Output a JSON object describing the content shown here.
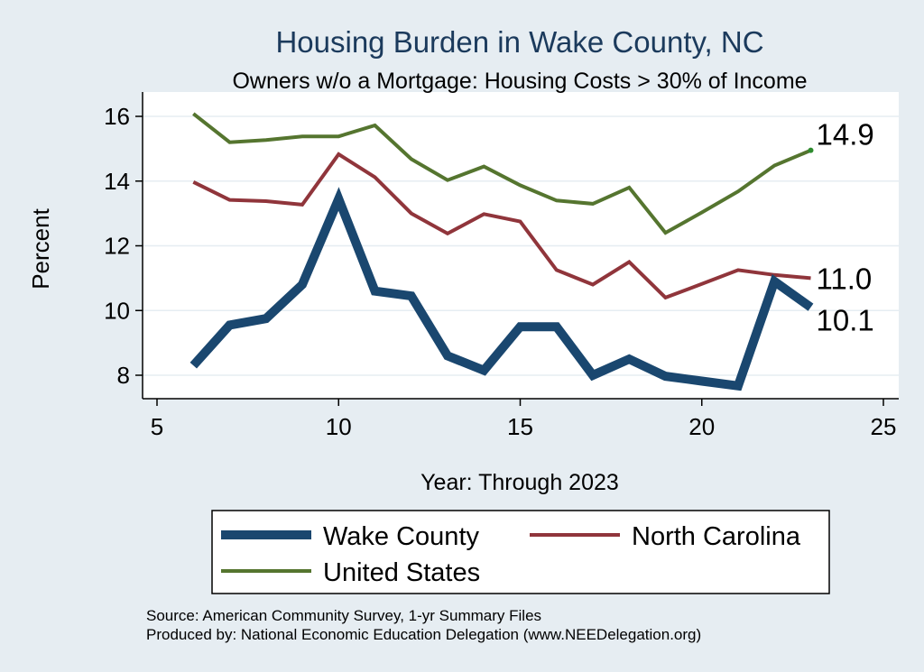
{
  "colors": {
    "background": "#e6edf2",
    "plot_bg": "#ffffff",
    "grid": "#e6edf2",
    "title": "#1b3a5c",
    "wake": "#1a476f",
    "nc": "#90353b",
    "us": "#55752f",
    "us_marker": "#2e8b2e"
  },
  "chart_data": {
    "type": "line",
    "title": "Housing Burden in Wake County, NC",
    "subtitle": "Owners w/o a Mortgage: Housing Costs > 30% of Income",
    "xlabel": "Year: Through 2023",
    "ylabel": "Percent",
    "xlim": [
      5,
      25
    ],
    "ylim": [
      7.3,
      16.3
    ],
    "xticks": [
      5,
      10,
      15,
      20,
      25
    ],
    "yticks": [
      8,
      10,
      12,
      14,
      16
    ],
    "grid": true,
    "legend_position": "bottom",
    "series": [
      {
        "name": "Wake County",
        "color_key": "wake",
        "weight": "thick",
        "x": [
          6,
          7,
          8,
          9,
          10,
          11,
          12,
          13,
          14,
          15,
          16,
          17,
          18,
          19,
          20,
          21,
          22,
          23
        ],
        "y": [
          8.3,
          9.55,
          9.75,
          10.8,
          13.45,
          10.6,
          10.45,
          8.6,
          8.15,
          9.5,
          9.5,
          8.0,
          8.5,
          7.97,
          7.82,
          7.67,
          10.9,
          10.1
        ],
        "end_label": "10.1"
      },
      {
        "name": "North Carolina",
        "color_key": "nc",
        "weight": "medium",
        "x": [
          6,
          7,
          8,
          9,
          10,
          11,
          12,
          13,
          14,
          15,
          16,
          17,
          18,
          19,
          20,
          21,
          22,
          23
        ],
        "y": [
          13.97,
          13.42,
          13.38,
          13.27,
          14.83,
          14.12,
          13.0,
          12.38,
          12.98,
          12.75,
          11.25,
          10.8,
          11.5,
          10.4,
          10.82,
          11.25,
          11.1,
          11.0
        ],
        "end_label": "11.0"
      },
      {
        "name": "United States",
        "color_key": "us",
        "weight": "medium",
        "x": [
          6,
          7,
          8,
          9,
          10,
          11,
          12,
          13,
          14,
          15,
          16,
          17,
          18,
          19,
          20,
          21,
          22,
          23
        ],
        "y": [
          16.08,
          15.2,
          15.27,
          15.38,
          15.38,
          15.72,
          14.68,
          14.03,
          14.45,
          13.87,
          13.4,
          13.3,
          13.8,
          12.4,
          13.03,
          13.68,
          14.48,
          14.95
        ],
        "end_label": "14.9"
      }
    ],
    "source": "Source: American Community Survey, 1-yr Summary Files",
    "produced_by": "Produced by: National Economic Education Delegation (www.NEEDelegation.org)"
  }
}
